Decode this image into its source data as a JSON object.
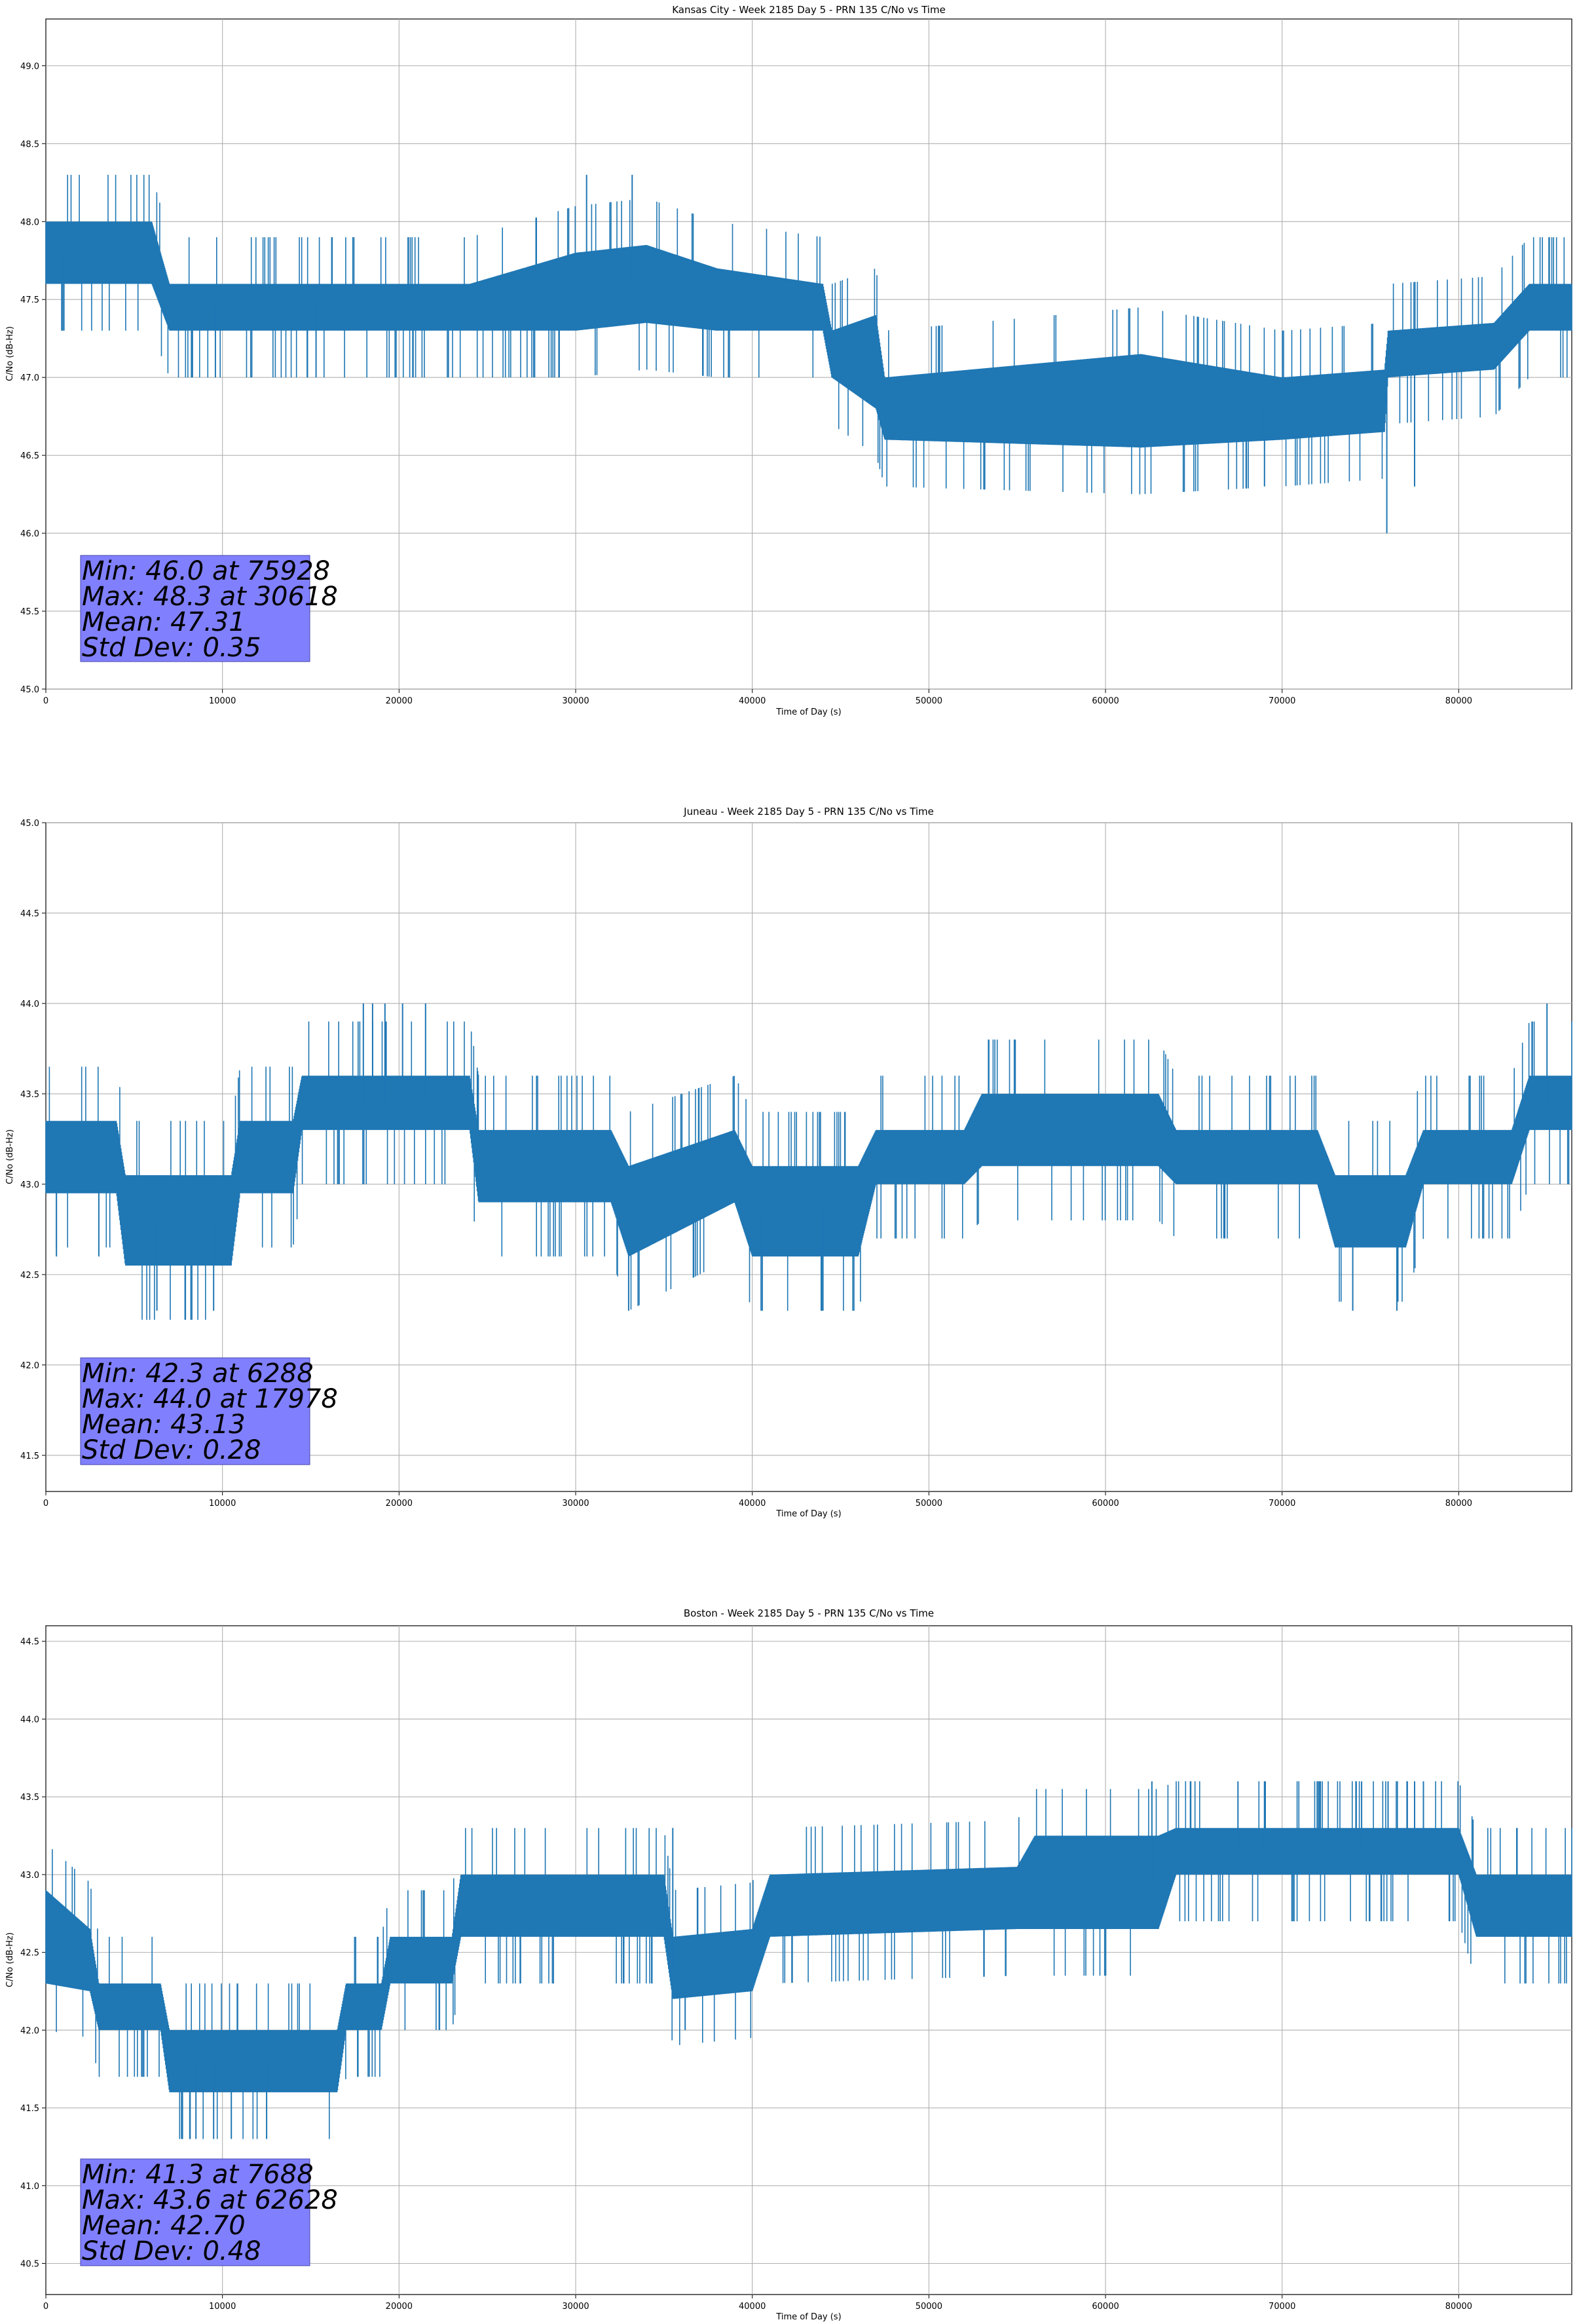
{
  "chart_data": [
    {
      "type": "line",
      "title": "Kansas City - Week 2185 Day 5 - PRN 135 C/No vs Time",
      "xlabel": "Time of Day (s)",
      "ylabel": "C/No (dB-Hz)",
      "xlim": [
        0,
        86400
      ],
      "ylim": [
        45.0,
        49.3
      ],
      "xticks": [
        0,
        10000,
        20000,
        30000,
        40000,
        50000,
        60000,
        70000,
        80000
      ],
      "yticks": [
        45.0,
        45.5,
        46.0,
        46.5,
        47.0,
        47.5,
        48.0,
        48.5,
        49.0
      ],
      "grid": true,
      "color": "#1f77b4",
      "series": [
        {
          "x": [
            0,
            6000,
            7000,
            24000,
            30000,
            34000,
            38000,
            44000,
            44500,
            47000,
            47500,
            62000,
            70000,
            75800,
            76000,
            82000,
            84000,
            86400
          ],
          "y": [
            47.8,
            47.8,
            47.45,
            47.45,
            47.55,
            47.6,
            47.5,
            47.45,
            47.15,
            47.1,
            46.8,
            46.85,
            46.8,
            46.85,
            47.15,
            47.2,
            47.45,
            47.45
          ],
          "spread": [
            0.2,
            0.2,
            0.15,
            0.15,
            0.25,
            0.25,
            0.2,
            0.15,
            0.15,
            0.3,
            0.2,
            0.3,
            0.2,
            0.2,
            0.15,
            0.15,
            0.15,
            0.15
          ],
          "spikes": [
            [
              30618,
              48.3
            ],
            [
              33200,
              48.3
            ],
            [
              75928,
              46.0
            ],
            [
              69000,
              46.3
            ],
            [
              77500,
              46.3
            ],
            [
              9600,
              47.0
            ],
            [
              14800,
              47.0
            ],
            [
              15300,
              47.0
            ],
            [
              900,
              47.3
            ]
          ]
        }
      ],
      "annotation": [
        "Min: 46.0 at 75928",
        "Max: 48.3 at 30618",
        "Mean: 47.31",
        "Std Dev: 0.35"
      ]
    },
    {
      "type": "line",
      "title": "Juneau - Week 2185 Day 5 - PRN 135 C/No vs Time",
      "xlabel": "Time of Day (s)",
      "ylabel": "C/No (dB-Hz)",
      "xlim": [
        0,
        86400
      ],
      "ylim": [
        41.3,
        45.0
      ],
      "xticks": [
        0,
        10000,
        20000,
        30000,
        40000,
        50000,
        60000,
        70000,
        80000
      ],
      "yticks": [
        41.5,
        42.0,
        42.5,
        43.0,
        43.5,
        44.0,
        44.5,
        45.0
      ],
      "grid": true,
      "color": "#1f77b4",
      "series": [
        {
          "x": [
            0,
            4000,
            4500,
            10500,
            11000,
            14000,
            14500,
            24000,
            24500,
            32000,
            33000,
            39000,
            40000,
            46000,
            47000,
            52000,
            53000,
            63000,
            64000,
            72000,
            73000,
            77000,
            78000,
            83000,
            84000,
            86400
          ],
          "y": [
            43.15,
            43.15,
            42.8,
            42.8,
            43.15,
            43.15,
            43.45,
            43.45,
            43.1,
            43.1,
            42.85,
            43.1,
            42.85,
            42.85,
            43.15,
            43.15,
            43.3,
            43.3,
            43.15,
            43.15,
            42.85,
            42.85,
            43.15,
            43.15,
            43.45,
            43.45
          ],
          "spread": [
            0.2,
            0.2,
            0.25,
            0.25,
            0.2,
            0.2,
            0.15,
            0.15,
            0.2,
            0.2,
            0.25,
            0.2,
            0.25,
            0.25,
            0.15,
            0.15,
            0.2,
            0.2,
            0.15,
            0.15,
            0.2,
            0.2,
            0.15,
            0.15,
            0.15,
            0.15
          ],
          "spikes": [
            [
              17978,
              44.0
            ],
            [
              18500,
              44.0
            ],
            [
              19200,
              44.0
            ],
            [
              20200,
              44.0
            ],
            [
              21500,
              44.0
            ],
            [
              85000,
              44.0
            ],
            [
              6288,
              42.3
            ],
            [
              9500,
              42.3
            ],
            [
              40500,
              42.3
            ],
            [
              44000,
              42.3
            ],
            [
              33000,
              42.3
            ],
            [
              74000,
              42.3
            ],
            [
              76500,
              42.3
            ],
            [
              600,
              42.6
            ],
            [
              3000,
              42.6
            ]
          ]
        }
      ],
      "annotation": [
        "Min: 42.3 at 6288",
        "Max: 44.0 at 17978",
        "Mean: 43.13",
        "Std Dev: 0.28"
      ]
    },
    {
      "type": "line",
      "title": "Boston - Week 2185 Day 5 - PRN 135 C/No vs Time",
      "xlabel": "Time of Day (s)",
      "ylabel": "C/No (dB-Hz)",
      "xlim": [
        0,
        86400
      ],
      "ylim": [
        40.3,
        44.6
      ],
      "xticks": [
        0,
        10000,
        20000,
        30000,
        40000,
        50000,
        60000,
        70000,
        80000
      ],
      "yticks": [
        40.5,
        41.0,
        41.5,
        42.0,
        42.5,
        43.0,
        43.5,
        44.0,
        44.5
      ],
      "grid": true,
      "color": "#1f77b4",
      "series": [
        {
          "x": [
            0,
            2500,
            3000,
            6500,
            7000,
            16500,
            17000,
            19000,
            19500,
            23000,
            23500,
            35000,
            35500,
            40000,
            41000,
            55000,
            56000,
            63000,
            64000,
            80000,
            81000,
            86400
          ],
          "y": [
            42.6,
            42.45,
            42.15,
            42.15,
            41.8,
            41.8,
            42.15,
            42.15,
            42.45,
            42.45,
            42.8,
            42.8,
            42.4,
            42.45,
            42.8,
            42.85,
            42.95,
            42.95,
            43.15,
            43.15,
            42.8,
            42.8
          ],
          "spread": [
            0.3,
            0.2,
            0.15,
            0.15,
            0.2,
            0.2,
            0.15,
            0.15,
            0.15,
            0.15,
            0.2,
            0.2,
            0.2,
            0.2,
            0.2,
            0.2,
            0.3,
            0.3,
            0.15,
            0.15,
            0.2,
            0.2
          ],
          "spikes": [
            [
              62628,
              43.6
            ],
            [
              67500,
              43.6
            ],
            [
              69000,
              43.6
            ],
            [
              72000,
              43.6
            ],
            [
              74500,
              43.6
            ],
            [
              76000,
              43.6
            ],
            [
              77500,
              43.6
            ],
            [
              78000,
              43.6
            ],
            [
              7688,
              41.3
            ],
            [
              8500,
              41.3
            ],
            [
              9500,
              41.3
            ],
            [
              10500,
              41.3
            ],
            [
              12500,
              41.3
            ],
            [
              36200,
              42.0
            ],
            [
              35500,
              43.3
            ]
          ]
        }
      ],
      "annotation": [
        "Min: 41.3 at 7688",
        "Max: 43.6 at 62628",
        "Mean: 42.70",
        "Std Dev: 0.48"
      ]
    }
  ]
}
